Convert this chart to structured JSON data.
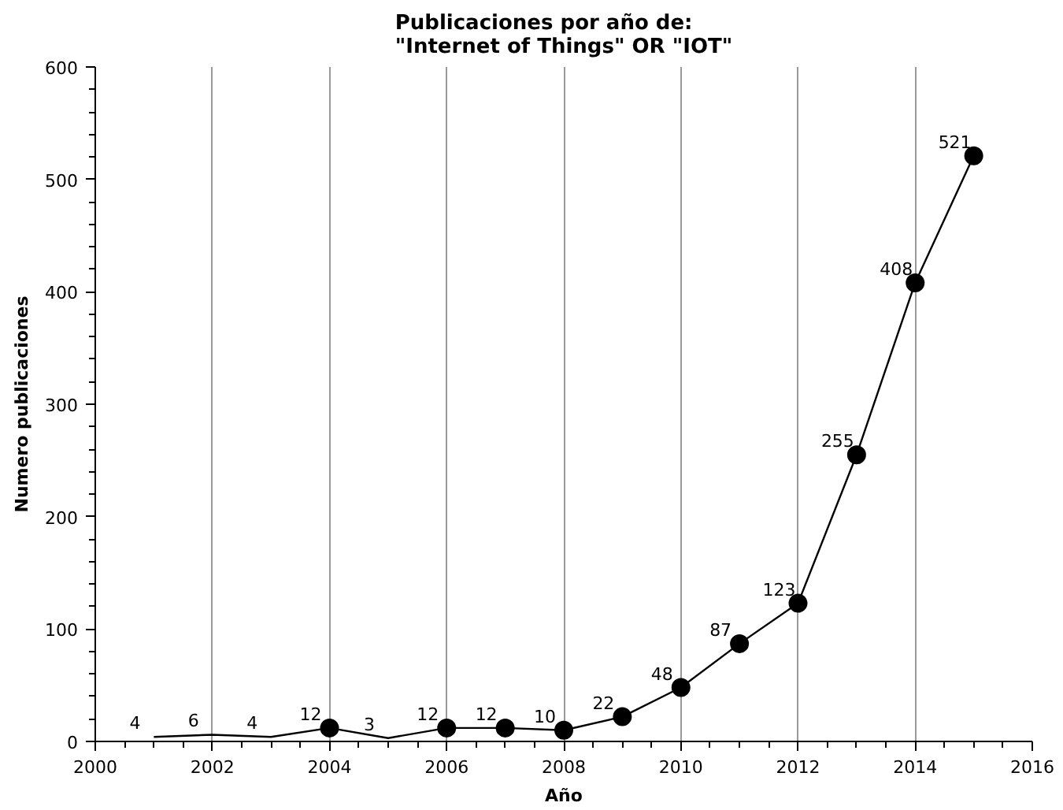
{
  "chart_data": {
    "type": "line",
    "title": "Publicaciones por año de:\n\"Internet of Things\" OR \"IOT\"",
    "xlabel": "Año",
    "ylabel": "Numero publicaciones",
    "xlim": [
      2000,
      2016
    ],
    "xticks": [
      2000,
      2002,
      2004,
      2006,
      2008,
      2010,
      2012,
      2014,
      2016
    ],
    "ylim": [
      0,
      600
    ],
    "yticks": [
      0,
      100,
      200,
      300,
      400,
      500,
      600
    ],
    "grid": "x",
    "series": [
      {
        "color": "#000000",
        "marker": "none",
        "data_labels": true,
        "x": [
          2001,
          2002,
          2003,
          2004,
          2005,
          2006,
          2007,
          2008,
          2009,
          2010,
          2011,
          2012,
          2013,
          2014,
          2015
        ],
        "values": [
          4,
          6,
          4,
          12,
          3,
          12,
          12,
          10,
          22,
          48,
          87,
          123,
          255,
          408,
          521
        ]
      },
      {
        "type": "scatter",
        "color": "#000000",
        "marker": "circle",
        "x": [
          2004,
          2006,
          2007,
          2008,
          2009,
          2010,
          2011,
          2012,
          2013,
          2014,
          2015
        ],
        "values": [
          12,
          12,
          12,
          10,
          22,
          48,
          87,
          123,
          255,
          408,
          521
        ]
      }
    ]
  }
}
